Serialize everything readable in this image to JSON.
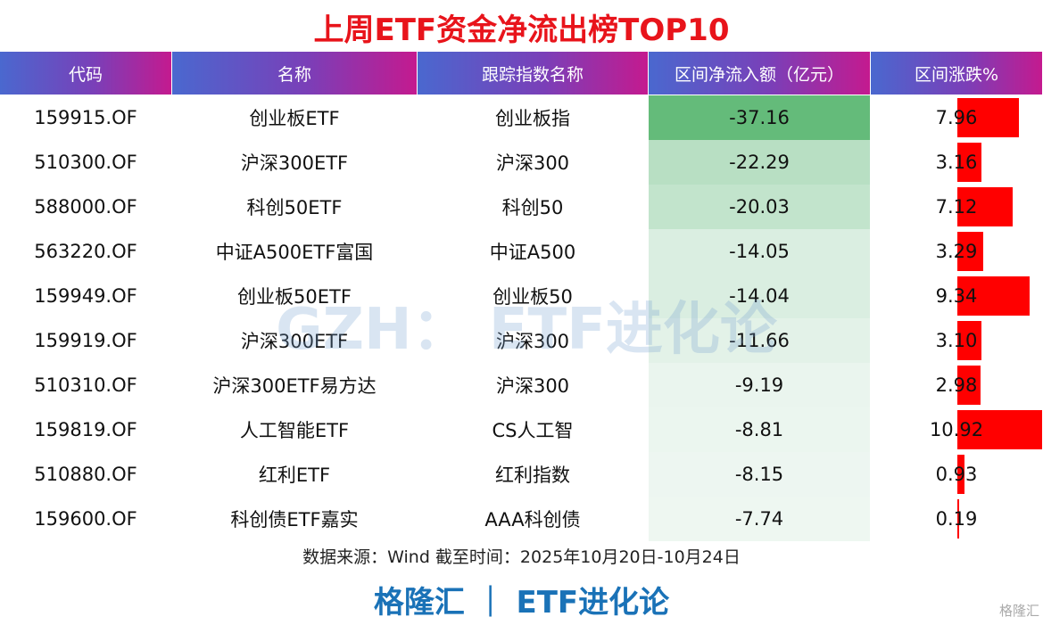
{
  "title": "上周ETF资金净流出榜TOP10",
  "table": {
    "headers": [
      "代码",
      "名称",
      "跟踪指数名称",
      "区间净流入额（亿元）",
      "区间涨跌%"
    ],
    "rows": [
      [
        "159915.OF",
        "创业板ETF",
        "创业板指",
        "-37.16",
        "7.96"
      ],
      [
        "510300.OF",
        "沪深300ETF",
        "沪深300",
        "-22.29",
        "3.16"
      ],
      [
        "588000.OF",
        "科创50ETF",
        "科创50",
        "-20.03",
        "7.12"
      ],
      [
        "563220.OF",
        "中证A500ETF富国",
        "中证A500",
        "-14.05",
        "3.29"
      ],
      [
        "159949.OF",
        "创业板50ETF",
        "创业板50",
        "-14.04",
        "9.34"
      ],
      [
        "159919.OF",
        "沪深300ETF",
        "沪深300",
        "-11.66",
        "3.10"
      ],
      [
        "510310.OF",
        "沪深300ETF易方达",
        "沪深300",
        "-9.19",
        "2.98"
      ],
      [
        "159819.OF",
        "人工智能ETF",
        "CS人工智",
        "-8.81",
        "10.92"
      ],
      [
        "510880.OF",
        "红利ETF",
        "红利指数",
        "-8.15",
        "0.93"
      ],
      [
        "159600.OF",
        "科创债ETF嘉实",
        "AAA科创债",
        "-7.74",
        "0.19"
      ]
    ]
  },
  "source": "数据来源：Wind 截至时间：2025年10月20日-10月24日",
  "footer": "格隆汇 ｜ ETF进化论",
  "watermark": "GZH： ETF进化论",
  "logo": "格隆汇"
}
